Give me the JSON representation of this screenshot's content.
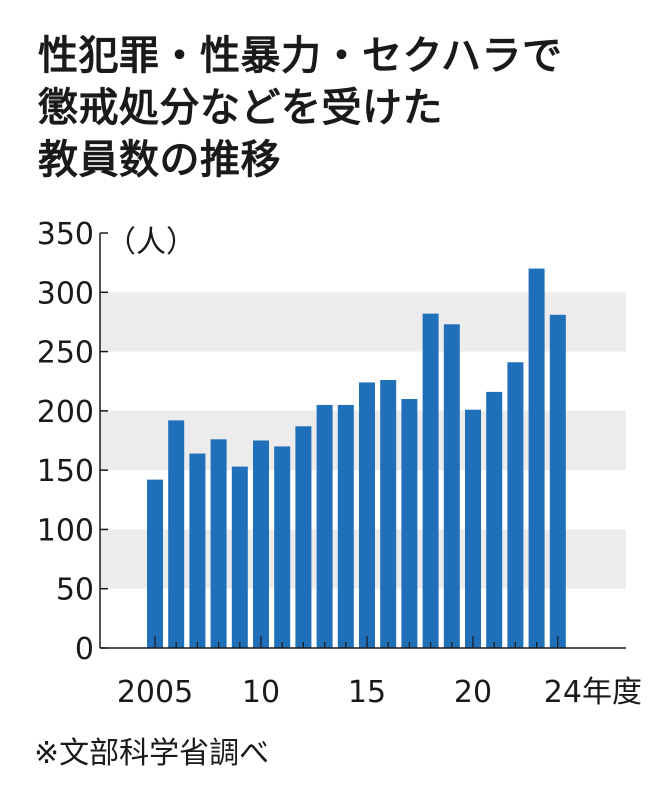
{
  "title_lines": [
    "性犯罪・性暴力・セクハラで",
    "懲戒処分などを受けた",
    "教員数の推移"
  ],
  "source": "※文部科学省調べ",
  "chart_data": {
    "type": "bar",
    "title": "性犯罪・性暴力・セクハラで懲戒処分などを受けた教員数の推移",
    "ylabel": "（人）",
    "xlabel": "年度",
    "ylim": [
      0,
      350
    ],
    "yticks": [
      0,
      50,
      100,
      150,
      200,
      250,
      300,
      350
    ],
    "grid": "alternating horizontal bands",
    "categories": [
      2005,
      2006,
      2007,
      2008,
      2009,
      2010,
      2011,
      2012,
      2013,
      2014,
      2015,
      2016,
      2017,
      2018,
      2019,
      2020,
      2021,
      2022,
      2023,
      2024
    ],
    "values": [
      142,
      192,
      164,
      176,
      153,
      175,
      170,
      187,
      205,
      205,
      224,
      226,
      210,
      282,
      273,
      201,
      216,
      241,
      320,
      281
    ],
    "xtick_labels": [
      {
        "category": 2005,
        "label": "2005"
      },
      {
        "category": 2010,
        "label": "10"
      },
      {
        "category": 2015,
        "label": "15"
      },
      {
        "category": 2020,
        "label": "20"
      },
      {
        "category": 2024,
        "label": "24年度"
      }
    ],
    "bar_color": "#1f6fb9",
    "band_color": "#ececec"
  }
}
